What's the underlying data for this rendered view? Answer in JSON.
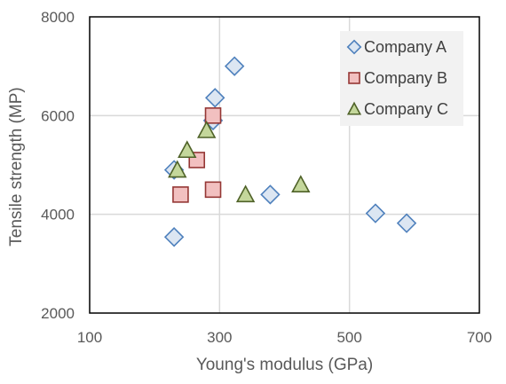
{
  "chart_data": {
    "type": "scatter",
    "title": "",
    "xlabel": "Young's modulus (GPa)",
    "ylabel": "Tensile strength (MP)",
    "xlim": [
      100,
      700
    ],
    "ylim": [
      2000,
      8000
    ],
    "xticks": [
      100,
      300,
      500,
      700
    ],
    "yticks": [
      2000,
      4000,
      6000,
      8000
    ],
    "xtick_labels": [
      "100",
      "300",
      "500",
      "700"
    ],
    "ytick_labels": [
      "2000",
      "4000",
      "6000",
      "8000"
    ],
    "grid": true,
    "legend_position": "top-right",
    "series": [
      {
        "name": "Company A",
        "marker": "diamond",
        "fill": "#dce6f2",
        "stroke": "#4f81bd",
        "points": [
          [
            230,
            3540
          ],
          [
            230,
            4900
          ],
          [
            293,
            6360
          ],
          [
            290,
            5900
          ],
          [
            323,
            7000
          ],
          [
            378,
            4400
          ],
          [
            540,
            4020
          ],
          [
            588,
            3820
          ]
        ]
      },
      {
        "name": "Company B",
        "marker": "square",
        "fill": "#f2c0c0",
        "stroke": "#953735",
        "points": [
          [
            240,
            4400
          ],
          [
            265,
            5100
          ],
          [
            290,
            6000
          ],
          [
            290,
            4500
          ]
        ]
      },
      {
        "name": "Company C",
        "marker": "triangle",
        "fill": "#c4d79b",
        "stroke": "#4f6228",
        "points": [
          [
            235,
            4900
          ],
          [
            250,
            5300
          ],
          [
            280,
            5700
          ],
          [
            340,
            4400
          ],
          [
            425,
            4600
          ]
        ]
      }
    ]
  }
}
